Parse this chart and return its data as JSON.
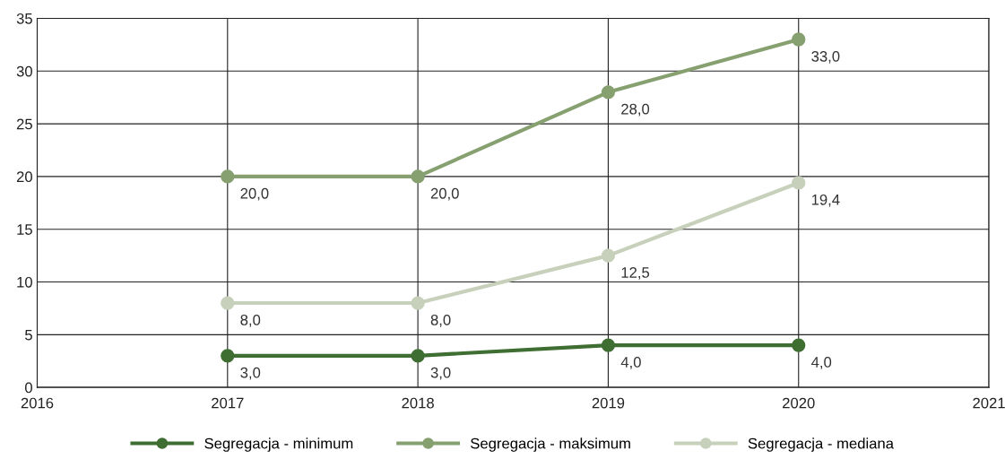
{
  "chart_data": {
    "type": "line",
    "x": [
      2017,
      2018,
      2019,
      2020
    ],
    "series": [
      {
        "name": "Segregacja - minimum",
        "color": "#3f6e32",
        "values": [
          3.0,
          3.0,
          4.0,
          4.0
        ],
        "value_labels": [
          "3,0",
          "3,0",
          "4,0",
          "4,0"
        ]
      },
      {
        "name": "Segregacja - maksimum",
        "color": "#86a070",
        "values": [
          20.0,
          20.0,
          28.0,
          33.0
        ],
        "value_labels": [
          "20,0",
          "20,0",
          "28,0",
          "33,0"
        ]
      },
      {
        "name": "Segregacja - mediana",
        "color": "#c6d0ba",
        "values": [
          8.0,
          8.0,
          12.5,
          19.4
        ],
        "value_labels": [
          "8,0",
          "8,0",
          "12,5",
          "19,4"
        ]
      }
    ],
    "xlim": [
      2016,
      2021
    ],
    "xticks": [
      2016,
      2017,
      2018,
      2019,
      2020,
      2021
    ],
    "ylim": [
      0,
      35
    ],
    "yticks": [
      0,
      5,
      10,
      15,
      20,
      25,
      30,
      35
    ],
    "grid": true,
    "legend": "bottom",
    "marker": "circle",
    "line_style": "solid"
  }
}
